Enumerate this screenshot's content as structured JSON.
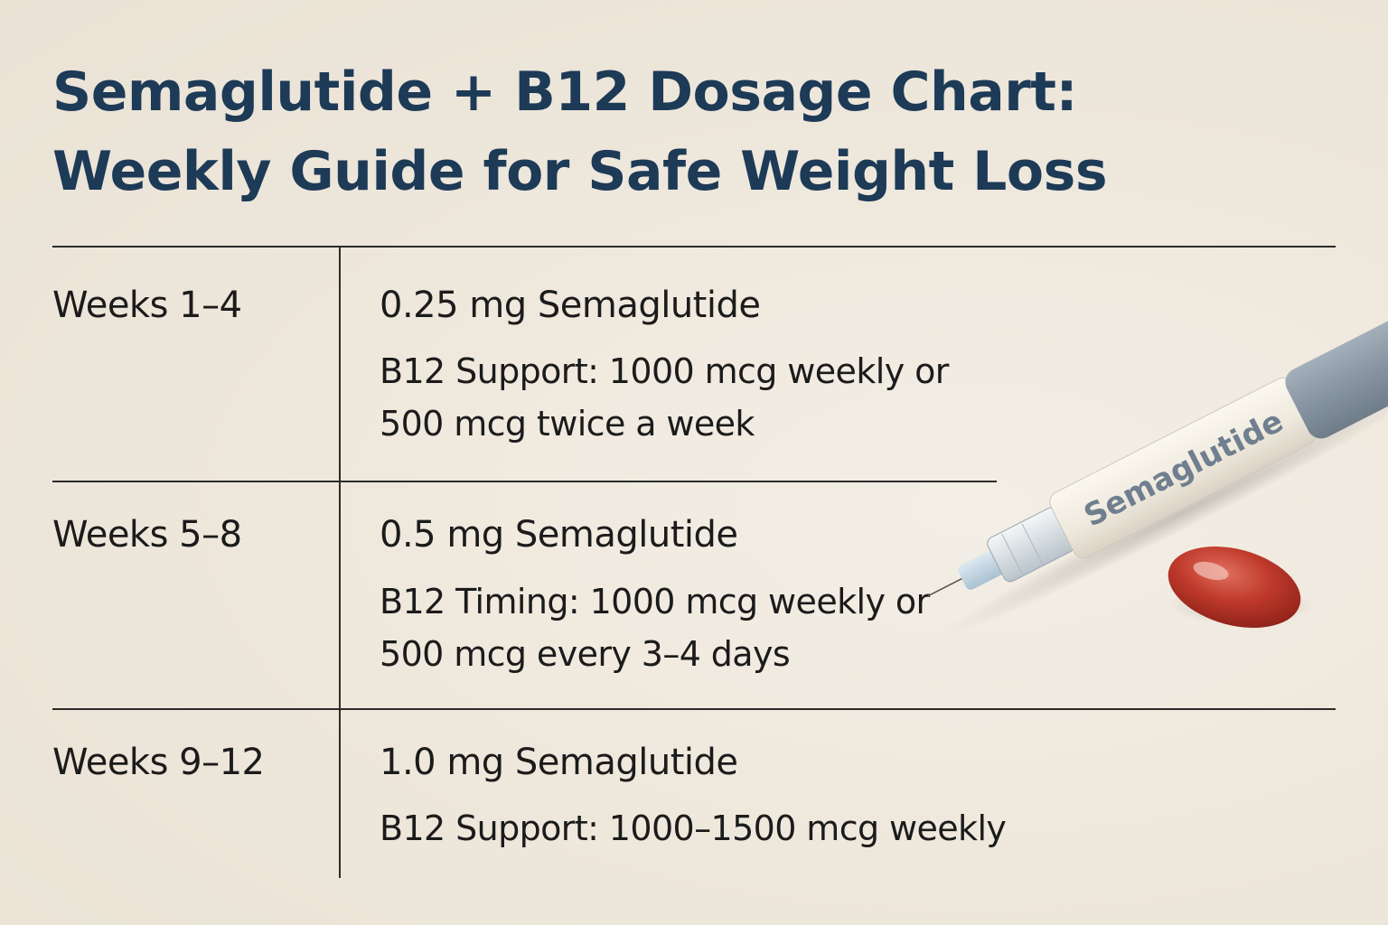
{
  "title": {
    "line1": "Semaglutide + B12 Dosage Chart:",
    "line2": "Weekly Guide for Safe Weight Loss"
  },
  "rows": [
    {
      "weeks": "Weeks 1–4",
      "dose": "0.25 mg Semaglutide",
      "b12_line1": "B12 Support: 1000 mcg weekly or",
      "b12_line2": "500 mcg twice a week"
    },
    {
      "weeks": "Weeks 5–8",
      "dose": "0.5 mg Semaglutide",
      "b12_line1": "B12 Timing: 1000 mcg weekly or",
      "b12_line2": "500 mcg every 3–4 days"
    },
    {
      "weeks": "Weeks 9–12",
      "dose": "1.0 mg Semaglutide",
      "b12_line1": "B12 Support: 1000–1500 mcg weekly"
    }
  ],
  "illustration": {
    "pen_label": "Semaglutide",
    "pen_icon": "injection-pen-icon",
    "capsule_icon": "capsule-icon"
  },
  "colors": {
    "background": "#efe9df",
    "title": "#1d3a57",
    "pen_cap": "#8a97a3",
    "capsule": "#b8362a"
  }
}
